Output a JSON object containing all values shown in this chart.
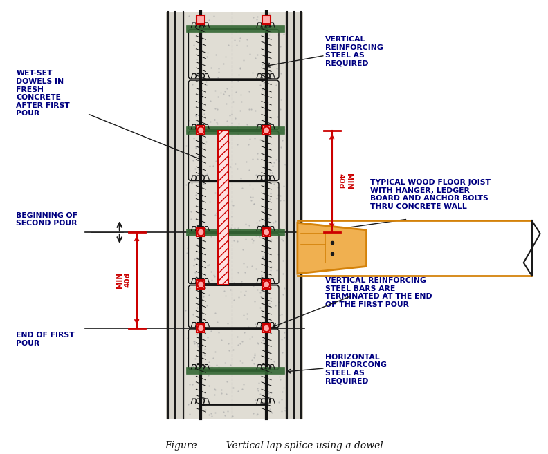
{
  "title": "Figure       – Vertical lap splice using a dowel",
  "bg_color": "#ffffff",
  "colors": {
    "outline": "#1a1a1a",
    "concrete_fill": "#e0ddd4",
    "rebar": "#111111",
    "red": "#cc0000",
    "green": "#336633",
    "orange": "#d4820a",
    "orange_fill": "#f0b050",
    "label_text": "#000080",
    "title_text": "#111111",
    "gray_hatch": "#888888"
  },
  "labels": {
    "wet_set": "WET-SET\nDOWELS IN\nFRESH\nCONCRETE\nAFTER FIRST\nPOUR",
    "beginning": "BEGINNING OF\nSECOND POUR",
    "end_pour": "END OF FIRST\nPOUR",
    "vert_reinf": "VERTICAL\nREINFORCING\nSTEEL AS\nREQUIRED",
    "wood_joist": "TYPICAL WOOD FLOOR JOIST\nWITH HANGER, LEDGER\nBOARD AND ANCHOR BOLTS\nTHRU CONCRETE WALL",
    "vert_bars_term": "VERTICAL REINFORCING\nSTEEL BARS ARE\nTERMINATED AT THE END\nOF THE FIRST POUR",
    "horiz_reinf": "HORIZONTAL\nREINFORCONG\nSTEEL AS\nREQUIRED"
  }
}
